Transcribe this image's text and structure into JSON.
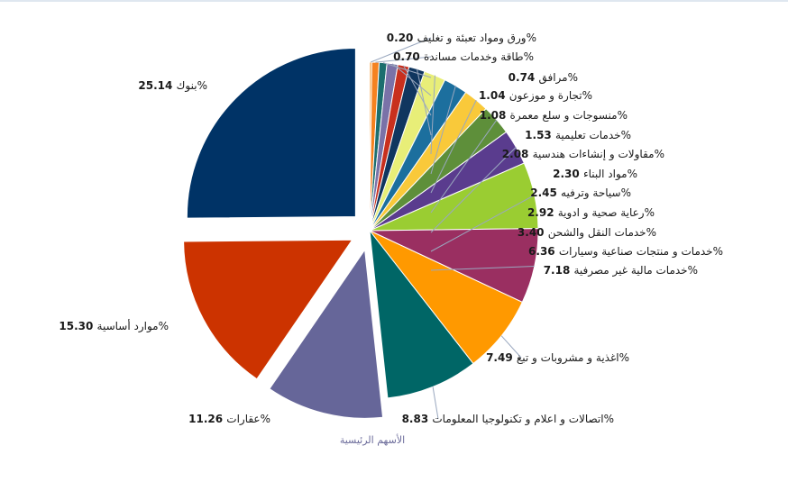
{
  "chart_data": {
    "type": "pie",
    "title": "",
    "slices": [
      {
        "label": "ورق ومواد تعبئة و تغليف",
        "value": 0.2,
        "color": "#F79A2C",
        "exploded": false
      },
      {
        "label": "طاقة وخدمات مساندة",
        "value": 0.7,
        "color": "#F58220",
        "exploded": false
      },
      {
        "label": "مرافق",
        "value": 0.74,
        "color": "#1C6E6E",
        "exploded": false
      },
      {
        "label": "تجارة و موزعون",
        "value": 1.04,
        "color": "#7A72A8",
        "exploded": false
      },
      {
        "label": "منسوجات و سلع معمرة",
        "value": 1.08,
        "color": "#C8301E",
        "exploded": false
      },
      {
        "label": "خدمات تعليمية",
        "value": 1.53,
        "color": "#10365F",
        "exploded": false
      },
      {
        "label": "مقاولات و إنشاءات هندسية",
        "value": 2.08,
        "color": "#E8EE78",
        "exploded": false
      },
      {
        "label": "مواد البناء",
        "value": 2.3,
        "color": "#1C6F9E",
        "exploded": false
      },
      {
        "label": "سياحة وترفيه",
        "value": 2.45,
        "color": "#F9C93A",
        "exploded": false
      },
      {
        "label": "رعاية صحية و ادوية",
        "value": 2.92,
        "color": "#5E8F3A",
        "exploded": false
      },
      {
        "label": "خدمات النقل والشحن",
        "value": 3.4,
        "color": "#5A3C8E",
        "exploded": false
      },
      {
        "label": "خدمات و منتجات صناعية وسيارات",
        "value": 6.36,
        "color": "#9ACD32",
        "exploded": false
      },
      {
        "label": "خدمات مالية غير مصرفية",
        "value": 7.18,
        "color": "#9A2F61",
        "exploded": false
      },
      {
        "label": "اغذية و مشروبات و تبغ",
        "value": 7.49,
        "color": "#FF9900",
        "exploded": false
      },
      {
        "label": "اتصالات و  اعلام و تكنولوجيا المعلومات",
        "value": 8.83,
        "color": "#006666",
        "exploded": false
      },
      {
        "label": "عقارات",
        "value": 11.26,
        "color": "#666699",
        "exploded": true
      },
      {
        "label": "موارد أساسية",
        "value": 15.3,
        "color": "#CC3300",
        "exploded": true
      },
      {
        "label": "بنوك",
        "value": 25.14,
        "color": "#003366",
        "exploded": true
      }
    ],
    "value_format": "percent-2dp",
    "extra_label": "الأسهم الرئيسية",
    "legend": "none"
  }
}
